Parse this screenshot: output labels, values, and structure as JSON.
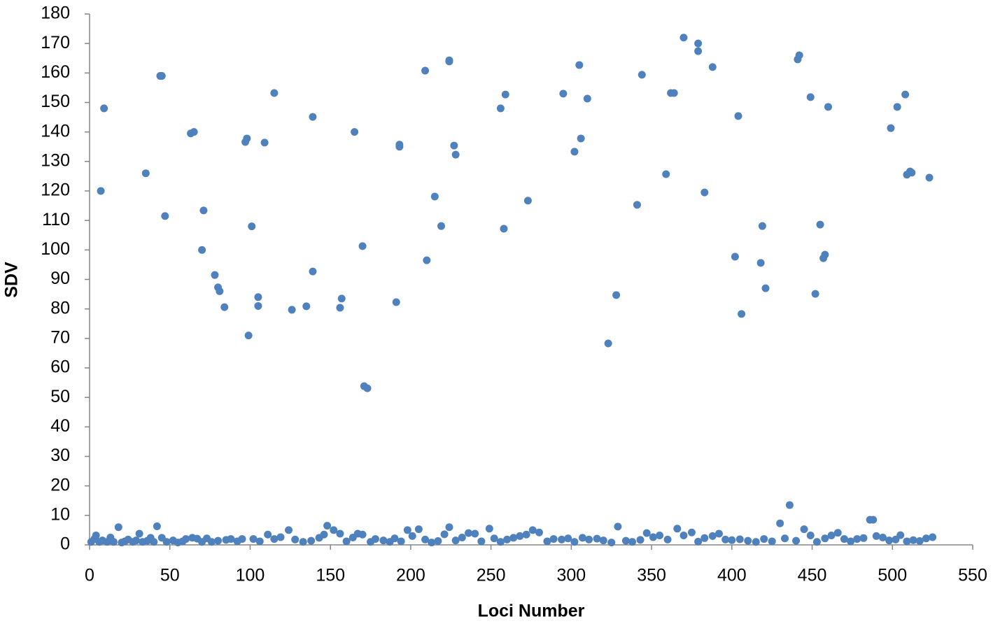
{
  "chart_data": {
    "type": "scatter",
    "xlabel": "Loci Number",
    "ylabel": "SDV",
    "color": "#4f81bd",
    "xlim": [
      0,
      550
    ],
    "xticks": [
      0,
      50,
      100,
      150,
      200,
      250,
      300,
      350,
      400,
      450,
      500,
      550
    ],
    "ylim": [
      0,
      180
    ],
    "yticks": [
      0,
      10,
      20,
      30,
      40,
      50,
      60,
      70,
      80,
      90,
      100,
      110,
      120,
      130,
      140,
      150,
      160,
      170,
      180
    ],
    "grid": false,
    "x": [
      7,
      9,
      35,
      44,
      45,
      47,
      63,
      65,
      71,
      70,
      78,
      80,
      81,
      84,
      97,
      98,
      99,
      101,
      105,
      105,
      109,
      115,
      126,
      135,
      139,
      139,
      156,
      157,
      165,
      170,
      171,
      173,
      191,
      193,
      193,
      209,
      210,
      215,
      219,
      224,
      224,
      227,
      228,
      256,
      258,
      259,
      273,
      295,
      302,
      305,
      306,
      310,
      323,
      328,
      341,
      344,
      359,
      362,
      364,
      370,
      379,
      379,
      383,
      388,
      402,
      404,
      406,
      418,
      419,
      421,
      441,
      442,
      449,
      452,
      455,
      457,
      458,
      460,
      499,
      503,
      508,
      509,
      511,
      512,
      523,
      1,
      3,
      4,
      6,
      8,
      11,
      13,
      15,
      18,
      20,
      22,
      24,
      27,
      29,
      31,
      33,
      36,
      38,
      40,
      42,
      45,
      48,
      52,
      55,
      58,
      60,
      64,
      67,
      70,
      73,
      76,
      80,
      85,
      88,
      92,
      95,
      102,
      106,
      111,
      115,
      119,
      124,
      128,
      133,
      138,
      143,
      146,
      148,
      152,
      156,
      160,
      164,
      167,
      170,
      175,
      178,
      183,
      187,
      190,
      194,
      198,
      201,
      205,
      209,
      213,
      217,
      221,
      224,
      228,
      232,
      236,
      240,
      244,
      249,
      252,
      256,
      260,
      264,
      268,
      272,
      276,
      280,
      285,
      289,
      294,
      298,
      302,
      307,
      311,
      316,
      320,
      325,
      329,
      334,
      338,
      343,
      347,
      351,
      355,
      360,
      366,
      370,
      375,
      379,
      383,
      388,
      392,
      396,
      400,
      405,
      410,
      415,
      420,
      425,
      430,
      433,
      436,
      440,
      445,
      449,
      453,
      458,
      462,
      466,
      470,
      474,
      478,
      482,
      486,
      488,
      490,
      494,
      498,
      502,
      505,
      509,
      513,
      517,
      521,
      525
    ],
    "values": [
      120,
      148,
      126,
      159,
      159,
      111.5,
      139.5,
      140,
      113.4,
      100,
      91.5,
      87.3,
      86,
      80.6,
      136.6,
      137.8,
      71,
      108,
      84,
      81,
      136.4,
      153.2,
      79.7,
      80.9,
      92.7,
      145.1,
      80.4,
      83.5,
      140,
      101.3,
      53.8,
      53.1,
      82.3,
      135,
      135.7,
      160.8,
      96.5,
      118.1,
      108.1,
      163.9,
      164.3,
      135.4,
      132.3,
      148,
      107.2,
      152.7,
      116.7,
      153,
      133.3,
      162.7,
      137.8,
      151.3,
      68.3,
      84.7,
      115.3,
      159.4,
      125.7,
      153.2,
      153.2,
      172,
      167.4,
      170,
      119.5,
      162,
      97.7,
      145.4,
      78.3,
      95.6,
      108.1,
      87,
      164.6,
      166,
      151.8,
      85.1,
      108.6,
      97.2,
      98.4,
      148.5,
      141.3,
      148.5,
      152.7,
      125.5,
      126.6,
      126.2,
      124.5,
      1,
      2,
      3.2,
      1,
      1.5,
      1,
      2.5,
      1,
      6,
      0.8,
      1.2,
      1.8,
      1,
      1.5,
      3.8,
      1,
      1.4,
      2.4,
      1,
      6.3,
      2.4,
      1,
      1.5,
      0.8,
      1.2,
      2,
      2.4,
      2.1,
      1,
      2.2,
      1,
      1.4,
      1.7,
      2,
      1.2,
      2,
      2,
      1.2,
      3.5,
      2,
      2.6,
      5,
      1.8,
      1,
      1.4,
      2.4,
      3.5,
      6.5,
      5,
      3.8,
      1.2,
      2.5,
      3.8,
      3.5,
      1,
      2,
      1.5,
      1,
      2.2,
      1.2,
      5,
      3,
      5.3,
      1.8,
      0.8,
      1.3,
      3.6,
      6,
      1.5,
      2.5,
      4,
      3.8,
      1.2,
      5.5,
      2.2,
      1,
      1.8,
      2.4,
      3,
      3.5,
      5,
      4.2,
      1.2,
      2,
      1.8,
      2.2,
      1,
      2.4,
      1.8,
      2.1,
      1.5,
      0.8,
      6.2,
      1.4,
      1,
      1.7,
      4,
      2.6,
      3.2,
      1.8,
      5.5,
      3.2,
      4.2,
      1.1,
      2.3,
      3,
      3.8,
      1.8,
      1.6,
      1.9,
      1.4,
      1,
      2,
      1.2,
      7.3,
      2.2,
      13.5,
      1.4,
      5.3,
      3.2,
      1,
      2.2,
      3.2,
      4.1,
      2,
      1.2,
      2,
      2.3,
      8.5,
      8.5,
      3,
      2.5,
      1.5,
      1.8,
      3.3,
      1.2,
      1.6,
      1.3,
      2.2,
      2.6
    ]
  }
}
